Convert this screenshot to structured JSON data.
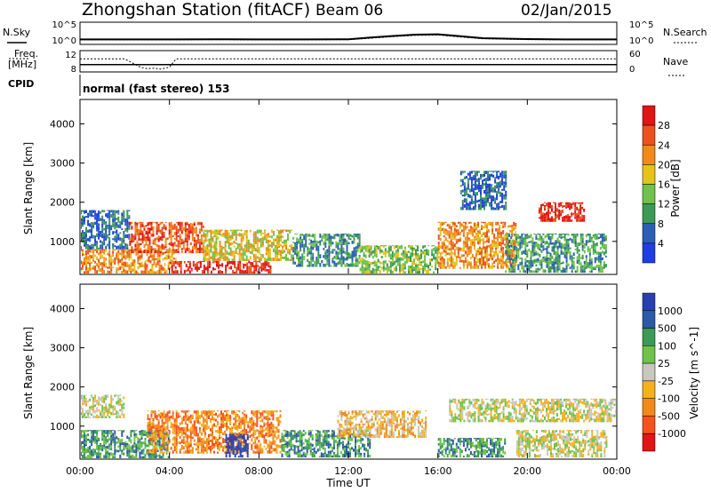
{
  "header": {
    "station": "Zhongshan Station (fitACF)",
    "beam": "Beam 06",
    "date": "02/Jan/2015"
  },
  "summary_panels": {
    "nsky_label": "N.Sky",
    "nsky_ticks": [
      "10^5",
      "10^0"
    ],
    "nsearch_label": "N.Search",
    "nsearch_ticks": [
      "10^5",
      "10^0"
    ],
    "freq_label_line1": "Freq.",
    "freq_label_line2": "[MHz]",
    "freq_ticks": [
      "12",
      "8"
    ],
    "nave_label": "Nave",
    "nave_ticks": [
      "60",
      "0"
    ],
    "cpid_label": "CPID",
    "cpid_text": "normal (fast stereo) 153"
  },
  "colors": {
    "power": [
      "#1f3fe0",
      "#2b5fb5",
      "#3b9a56",
      "#6fc24a",
      "#e6c21a",
      "#f08a1c",
      "#e8531f",
      "#e31414"
    ],
    "velocity": [
      "#e31414",
      "#f5531c",
      "#f08a1c",
      "#f3b11f",
      "#c8c8c0",
      "#6fc24a",
      "#3b9a56",
      "#2c5aa6",
      "#2a3fae"
    ]
  },
  "chart_data": [
    {
      "type": "line",
      "title": "N.Sky / N.Search",
      "x": [
        0,
        2,
        4,
        6,
        8,
        10,
        12,
        13,
        14,
        15,
        16,
        17,
        18,
        20,
        22,
        24
      ],
      "series": [
        {
          "name": "N.Sky",
          "values": [
            10,
            10,
            10,
            11,
            10,
            10,
            11,
            30,
            70,
            150,
            180,
            60,
            20,
            12,
            10,
            10
          ]
        },
        {
          "name": "N.Search",
          "values": [
            8,
            8,
            8,
            9,
            8,
            8,
            9,
            20,
            50,
            100,
            120,
            40,
            15,
            9,
            8,
            8
          ]
        }
      ],
      "yscale": "log",
      "ylim": [
        1,
        100000
      ]
    },
    {
      "type": "line",
      "title": "Freq. / Nave",
      "x": [
        0,
        2,
        2.7,
        3.0,
        3.3,
        3.6,
        4.0,
        4.3,
        6,
        12,
        18,
        24
      ],
      "series": [
        {
          "name": "Freq.",
          "values": [
            10.5,
            10.5,
            8.8,
            8.5,
            8.6,
            8.4,
            8.8,
            10.5,
            10.5,
            10.5,
            10.5,
            10.5
          ]
        },
        {
          "name": "Nave",
          "values": [
            20,
            20,
            20,
            20,
            20,
            20,
            20,
            20,
            20,
            20,
            20,
            20
          ]
        }
      ],
      "ylim": [
        8,
        12
      ]
    },
    {
      "type": "heatmap",
      "ylabel": "Slant Range [km]",
      "colorbar_label": "Power [dB]",
      "colorbar_ticks": [
        "4",
        "8",
        "12",
        "16",
        "20",
        "24",
        "28"
      ],
      "xlim": [
        0,
        24
      ],
      "ylim": [
        180,
        4600
      ],
      "yticks": [
        "1000",
        "2000",
        "3000",
        "4000"
      ],
      "regions": [
        {
          "t0": 0.0,
          "t1": 4.3,
          "r0": 180,
          "r1": 800,
          "level": 5
        },
        {
          "t0": 0.0,
          "t1": 2.2,
          "r0": 800,
          "r1": 1800,
          "level": 1
        },
        {
          "t0": 2.2,
          "t1": 5.5,
          "r0": 700,
          "r1": 1500,
          "level": 6
        },
        {
          "t0": 4.0,
          "t1": 8.5,
          "r0": 180,
          "r1": 500,
          "level": 7
        },
        {
          "t0": 5.5,
          "t1": 9.5,
          "r0": 500,
          "r1": 1300,
          "level": 4
        },
        {
          "t0": 9.5,
          "t1": 12.5,
          "r0": 350,
          "r1": 1200,
          "level": 2
        },
        {
          "t0": 12.5,
          "t1": 16.0,
          "r0": 180,
          "r1": 900,
          "level": 3
        },
        {
          "t0": 16.0,
          "t1": 19.5,
          "r0": 300,
          "r1": 1500,
          "level": 5
        },
        {
          "t0": 19.0,
          "t1": 23.5,
          "r0": 200,
          "r1": 1200,
          "level": 2
        },
        {
          "t0": 20.5,
          "t1": 22.5,
          "r0": 1500,
          "r1": 2000,
          "level": 7
        },
        {
          "t0": 17.0,
          "t1": 19.0,
          "r0": 1800,
          "r1": 2800,
          "level": 1
        }
      ]
    },
    {
      "type": "heatmap",
      "xlabel": "Time UT",
      "ylabel": "Slant Range [km]",
      "colorbar_label": "Velocity [m s^-1]",
      "colorbar_ticks": [
        "1000",
        "500",
        "100",
        "25",
        "-25",
        "-100",
        "-500",
        "-1000"
      ],
      "xticks": [
        "00:00",
        "04:00",
        "08:00",
        "12:00",
        "16:00",
        "20:00",
        "00:00"
      ],
      "xlim": [
        0,
        24
      ],
      "ylim": [
        180,
        4600
      ],
      "yticks": [
        "1000",
        "2000",
        "3000",
        "4000"
      ],
      "regions": [
        {
          "t0": 0.0,
          "t1": 2.0,
          "r0": 1200,
          "r1": 1800,
          "level": 4
        },
        {
          "t0": 0.0,
          "t1": 4.0,
          "r0": 180,
          "r1": 900,
          "level": 6
        },
        {
          "t0": 3.0,
          "t1": 9.0,
          "r0": 300,
          "r1": 1400,
          "level": 2
        },
        {
          "t0": 6.5,
          "t1": 7.5,
          "r0": 200,
          "r1": 800,
          "level": 8
        },
        {
          "t0": 9.0,
          "t1": 13.0,
          "r0": 200,
          "r1": 900,
          "level": 6
        },
        {
          "t0": 11.5,
          "t1": 15.5,
          "r0": 700,
          "r1": 1400,
          "level": 3
        },
        {
          "t0": 16.5,
          "t1": 24.0,
          "r0": 1100,
          "r1": 1700,
          "level": 4
        },
        {
          "t0": 16.0,
          "t1": 19.0,
          "r0": 200,
          "r1": 700,
          "level": 6
        },
        {
          "t0": 19.5,
          "t1": 23.5,
          "r0": 200,
          "r1": 900,
          "level": 4
        }
      ]
    }
  ]
}
